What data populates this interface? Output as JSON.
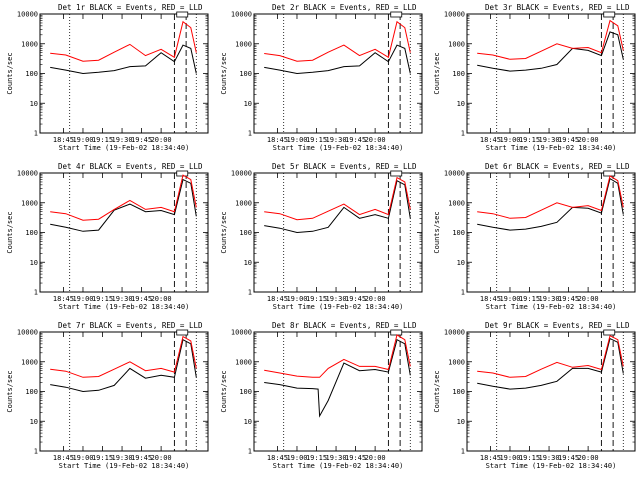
{
  "chart_data": [
    {
      "type": "line",
      "title": "Det 1r BLACK = Events, RED = LLD",
      "xlabel": "Start Time (19-Feb-02 18:34:40)",
      "ylabel": "Counts/sec",
      "yscale": "log",
      "ylim": [
        1,
        10000
      ],
      "y_ticks": [
        "1",
        "10",
        "100",
        "1000",
        "10000"
      ],
      "x_ticks": [
        "18:45",
        "19:00",
        "19:15",
        "19:30",
        "19:45",
        "20:00"
      ],
      "x": [
        18.58,
        18.78,
        19.0,
        19.2,
        19.4,
        19.6,
        19.8,
        20.0,
        20.17,
        20.28,
        20.38,
        20.45
      ],
      "series": [
        {
          "color": "#000000",
          "values": [
            160,
            130,
            100,
            110,
            125,
            170,
            180,
            500,
            250,
            900,
            700,
            100
          ]
        },
        {
          "color": "#ff0000",
          "values": [
            480,
            420,
            260,
            280,
            520,
            950,
            400,
            650,
            350,
            5500,
            3500,
            500
          ]
        }
      ],
      "vlines_dotted": [
        18.83,
        20.45
      ],
      "vlines_dashed": [
        20.17,
        20.32
      ]
    },
    {
      "type": "line",
      "title": "Det 2r BLACK = Events, RED = LLD",
      "xlabel": "Start Time (19-Feb-02 18:34:40)",
      "ylabel": "Counts/sec",
      "yscale": "log",
      "ylim": [
        1,
        10000
      ],
      "y_ticks": [
        "1",
        "10",
        "100",
        "1000",
        "10000"
      ],
      "x_ticks": [
        "18:45",
        "19:00",
        "19:15",
        "19:30",
        "19:45",
        "20:00"
      ],
      "x": [
        18.58,
        18.78,
        19.0,
        19.2,
        19.4,
        19.6,
        19.8,
        20.0,
        20.17,
        20.28,
        20.38,
        20.45
      ],
      "series": [
        {
          "color": "#000000",
          "values": [
            160,
            130,
            100,
            110,
            125,
            170,
            180,
            500,
            250,
            900,
            700,
            100
          ]
        },
        {
          "color": "#ff0000",
          "values": [
            470,
            400,
            260,
            280,
            520,
            900,
            400,
            650,
            350,
            5500,
            3500,
            500
          ]
        }
      ],
      "vlines_dotted": [
        18.83,
        20.45
      ],
      "vlines_dashed": [
        20.17,
        20.32
      ]
    },
    {
      "type": "line",
      "title": "Det 3r BLACK = Events, RED = LLD",
      "xlabel": "Start Time (19-Feb-02 18:34:40)",
      "ylabel": "Counts/sec",
      "yscale": "log",
      "ylim": [
        1,
        10000
      ],
      "y_ticks": [
        "1",
        "10",
        "100",
        "1000",
        "10000"
      ],
      "x_ticks": [
        "18:45",
        "19:00",
        "19:15",
        "19:30",
        "19:45",
        "20:00"
      ],
      "x": [
        18.58,
        18.78,
        19.0,
        19.2,
        19.4,
        19.6,
        19.8,
        20.0,
        20.17,
        20.28,
        20.38,
        20.45
      ],
      "series": [
        {
          "color": "#000000",
          "values": [
            190,
            150,
            120,
            130,
            150,
            200,
            700,
            600,
            400,
            2500,
            2000,
            300
          ]
        },
        {
          "color": "#ff0000",
          "values": [
            480,
            420,
            300,
            320,
            560,
            1000,
            700,
            750,
            500,
            6000,
            4000,
            600
          ]
        }
      ],
      "vlines_dotted": [
        18.83,
        20.45
      ],
      "vlines_dashed": [
        20.17,
        20.32
      ]
    },
    {
      "type": "line",
      "title": "Det 4r BLACK = Events, RED = LLD",
      "xlabel": "Start Time (19-Feb-02 18:34:40)",
      "ylabel": "Counts/sec",
      "yscale": "log",
      "ylim": [
        1,
        10000
      ],
      "y_ticks": [
        "1",
        "10",
        "100",
        "1000",
        "10000"
      ],
      "x_ticks": [
        "18:45",
        "19:00",
        "19:15",
        "19:30",
        "19:45",
        "20:00"
      ],
      "x": [
        18.58,
        18.78,
        19.0,
        19.2,
        19.4,
        19.6,
        19.8,
        20.0,
        20.17,
        20.28,
        20.38,
        20.45
      ],
      "series": [
        {
          "color": "#000000",
          "values": [
            190,
            150,
            110,
            120,
            560,
            900,
            500,
            550,
            400,
            6000,
            4500,
            350
          ]
        },
        {
          "color": "#ff0000",
          "values": [
            500,
            430,
            260,
            280,
            600,
            1200,
            600,
            700,
            500,
            8500,
            6000,
            700
          ]
        }
      ],
      "vlines_dotted": [
        18.83,
        20.45
      ],
      "vlines_dashed": [
        20.17,
        20.32
      ]
    },
    {
      "type": "line",
      "title": "Det 5r BLACK = Events, RED = LLD",
      "xlabel": "Start Time (19-Feb-02 18:34:40)",
      "ylabel": "Counts/sec",
      "yscale": "log",
      "ylim": [
        1,
        10000
      ],
      "y_ticks": [
        "1",
        "10",
        "100",
        "1000",
        "10000"
      ],
      "x_ticks": [
        "18:45",
        "19:00",
        "19:15",
        "19:30",
        "19:45",
        "20:00"
      ],
      "x": [
        18.58,
        18.78,
        19.0,
        19.2,
        19.4,
        19.6,
        19.8,
        20.0,
        20.17,
        20.28,
        20.38,
        20.45
      ],
      "series": [
        {
          "color": "#000000",
          "values": [
            170,
            140,
            100,
            110,
            150,
            700,
            300,
            400,
            300,
            5500,
            4000,
            300
          ]
        },
        {
          "color": "#ff0000",
          "values": [
            500,
            430,
            270,
            300,
            520,
            900,
            400,
            600,
            400,
            7000,
            5000,
            600
          ]
        }
      ],
      "vlines_dotted": [
        18.83,
        20.45
      ],
      "vlines_dashed": [
        20.17,
        20.32
      ]
    },
    {
      "type": "line",
      "title": "Det 6r BLACK = Events, RED = LLD",
      "xlabel": "Start Time (19-Feb-02 18:34:40)",
      "ylabel": "Counts/sec",
      "yscale": "log",
      "ylim": [
        1,
        10000
      ],
      "y_ticks": [
        "1",
        "10",
        "100",
        "1000",
        "10000"
      ],
      "x_ticks": [
        "18:45",
        "19:00",
        "19:15",
        "19:30",
        "19:45",
        "20:00"
      ],
      "x": [
        18.58,
        18.78,
        19.0,
        19.2,
        19.4,
        19.6,
        19.8,
        20.0,
        20.17,
        20.28,
        20.38,
        20.45
      ],
      "series": [
        {
          "color": "#000000",
          "values": [
            190,
            150,
            120,
            130,
            160,
            220,
            700,
            650,
            450,
            6500,
            4500,
            400
          ]
        },
        {
          "color": "#ff0000",
          "values": [
            500,
            430,
            300,
            320,
            560,
            1000,
            700,
            800,
            550,
            8000,
            5500,
            700
          ]
        }
      ],
      "vlines_dotted": [
        18.83,
        20.45
      ],
      "vlines_dashed": [
        20.17,
        20.32
      ]
    },
    {
      "type": "line",
      "title": "Det 7r BLACK = Events, RED = LLD",
      "xlabel": "Start Time (19-Feb-02 18:34:40)",
      "ylabel": "Counts/sec",
      "yscale": "log",
      "ylim": [
        1,
        10000
      ],
      "y_ticks": [
        "1",
        "10",
        "100",
        "1000",
        "10000"
      ],
      "x_ticks": [
        "18:45",
        "19:00",
        "19:15",
        "19:30",
        "19:45",
        "20:00"
      ],
      "x": [
        18.58,
        18.78,
        19.0,
        19.2,
        19.4,
        19.6,
        19.8,
        20.0,
        20.17,
        20.28,
        20.38,
        20.45
      ],
      "series": [
        {
          "color": "#000000",
          "values": [
            170,
            140,
            100,
            110,
            160,
            600,
            280,
            350,
            300,
            5500,
            4000,
            300
          ]
        },
        {
          "color": "#ff0000",
          "values": [
            560,
            480,
            300,
            320,
            560,
            1000,
            500,
            600,
            450,
            7000,
            5000,
            600
          ]
        }
      ],
      "vlines_dotted": [
        18.83,
        20.45
      ],
      "vlines_dashed": [
        20.17,
        20.32
      ]
    },
    {
      "type": "line",
      "title": "Det 8r BLACK = Events, RED = LLD",
      "xlabel": "Start Time (19-Feb-02 18:34:40)",
      "ylabel": "Counts/sec",
      "yscale": "log",
      "ylim": [
        1,
        10000
      ],
      "y_ticks": [
        "1",
        "10",
        "100",
        "1000",
        "10000"
      ],
      "x_ticks": [
        "18:45",
        "19:00",
        "19:15",
        "19:30",
        "19:45",
        "20:00"
      ],
      "x": [
        18.58,
        18.78,
        19.0,
        19.2,
        19.27,
        19.29,
        19.4,
        19.6,
        19.8,
        20.0,
        20.17,
        20.28,
        20.38,
        20.45
      ],
      "series": [
        {
          "color": "#000000",
          "values": [
            200,
            170,
            130,
            125,
            120,
            15,
            50,
            900,
            500,
            550,
            450,
            5500,
            4000,
            350
          ]
        },
        {
          "color": "#ff0000",
          "values": [
            520,
            420,
            330,
            300,
            300,
            300,
            600,
            1200,
            700,
            700,
            550,
            8000,
            5500,
            700
          ]
        }
      ],
      "vlines_dotted": [
        18.83,
        20.45
      ],
      "vlines_dashed": [
        20.17,
        20.32
      ]
    },
    {
      "type": "line",
      "title": "Det 9r BLACK = Events, RED = LLD",
      "xlabel": "Start Time (19-Feb-02 18:34:40)",
      "ylabel": "Counts/sec",
      "yscale": "log",
      "ylim": [
        1,
        10000
      ],
      "y_ticks": [
        "1",
        "10",
        "100",
        "1000",
        "10000"
      ],
      "x_ticks": [
        "18:45",
        "19:00",
        "19:15",
        "19:30",
        "19:45",
        "20:00"
      ],
      "x": [
        18.58,
        18.78,
        19.0,
        19.2,
        19.4,
        19.6,
        19.8,
        20.0,
        20.17,
        20.28,
        20.38,
        20.45
      ],
      "series": [
        {
          "color": "#000000",
          "values": [
            190,
            150,
            120,
            130,
            160,
            220,
            600,
            600,
            450,
            6000,
            4500,
            400
          ]
        },
        {
          "color": "#ff0000",
          "values": [
            480,
            420,
            300,
            320,
            560,
            950,
            650,
            750,
            550,
            7500,
            5500,
            700
          ]
        }
      ],
      "vlines_dotted": [
        18.83,
        20.45
      ],
      "vlines_dashed": [
        20.17,
        20.32
      ]
    }
  ]
}
